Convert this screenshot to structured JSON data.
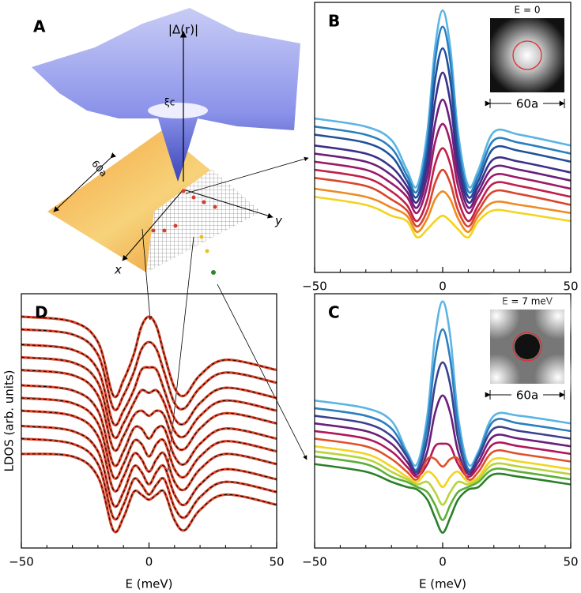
{
  "panel_a": {
    "label": "A",
    "surface_label": "|Δ(r)|",
    "core_label": "ξc",
    "size_label": "60a",
    "x_axis": "x",
    "y_axis": "y"
  },
  "chart_data": [
    {
      "type": "line",
      "label": "B",
      "x": [
        -50,
        -30,
        -20,
        -14,
        -10,
        -6,
        -3,
        0,
        3,
        6,
        10,
        14,
        20,
        30,
        50
      ],
      "series": [
        {
          "color": "#5ab4e5",
          "values": [
            57,
            54,
            49,
            38,
            32,
            52,
            83,
            97,
            83,
            52,
            32,
            38,
            52,
            51,
            47
          ]
        },
        {
          "color": "#2a7fc0",
          "values": [
            54,
            51,
            46,
            36,
            30,
            48,
            78,
            91,
            78,
            48,
            30,
            36,
            49,
            48,
            44
          ]
        },
        {
          "color": "#1f4f9a",
          "values": [
            51,
            48,
            43,
            34,
            28,
            44,
            71,
            83,
            71,
            44,
            28,
            34,
            46,
            45,
            41
          ]
        },
        {
          "color": "#3b2f8a",
          "values": [
            47,
            44,
            39,
            32,
            26,
            40,
            63,
            74,
            63,
            40,
            26,
            32,
            42,
            41,
            37
          ]
        },
        {
          "color": "#6a1f7a",
          "values": [
            44,
            41,
            36,
            30,
            24,
            36,
            55,
            64,
            55,
            36,
            24,
            30,
            39,
            38,
            34
          ]
        },
        {
          "color": "#9b1a6a",
          "values": [
            41,
            38,
            33,
            28,
            22,
            32,
            48,
            55,
            48,
            32,
            22,
            28,
            36,
            35,
            31
          ]
        },
        {
          "color": "#c0204a",
          "values": [
            38,
            35,
            30,
            25,
            19,
            27,
            40,
            46,
            40,
            27,
            19,
            25,
            33,
            32,
            28
          ]
        },
        {
          "color": "#d9452e",
          "values": [
            35,
            32,
            27,
            23,
            17,
            23,
            33,
            38,
            33,
            23,
            17,
            23,
            30,
            29,
            25
          ]
        },
        {
          "color": "#ee8a22",
          "values": [
            31,
            28,
            24,
            21,
            15,
            20,
            27,
            30,
            27,
            20,
            15,
            21,
            26,
            25,
            22
          ]
        },
        {
          "color": "#f2d41e",
          "values": [
            28,
            25,
            21,
            19,
            13,
            16,
            19,
            21,
            19,
            16,
            13,
            19,
            23,
            22,
            19
          ]
        }
      ],
      "xlim": [
        -50,
        50
      ],
      "ylim": [
        0,
        100
      ],
      "xticks": [
        {
          "value": -50,
          "label": "−50"
        },
        0,
        50
      ],
      "x_minor_ticks": [
        -40,
        -30,
        -20,
        -10,
        10,
        20,
        30,
        40
      ],
      "inset": {
        "title": "E = 0",
        "scale_label": "60a",
        "pattern": "single"
      }
    },
    {
      "type": "line",
      "label": "C",
      "x": [
        -50,
        -30,
        -20,
        -14,
        -10,
        -6,
        -3,
        0,
        3,
        6,
        10,
        14,
        20,
        30,
        50
      ],
      "series": [
        {
          "color": "#5ab4e5",
          "values": [
            58,
            55,
            50,
            38,
            33,
            52,
            83,
            97,
            83,
            52,
            33,
            38,
            52,
            52,
            49
          ]
        },
        {
          "color": "#2a7fc0",
          "values": [
            55,
            52,
            47,
            37,
            31,
            48,
            74,
            86,
            74,
            48,
            31,
            37,
            50,
            49,
            46
          ]
        },
        {
          "color": "#3b3f8f",
          "values": [
            52,
            49,
            44,
            36,
            30,
            43,
            64,
            73,
            64,
            43,
            30,
            36,
            47,
            46,
            43
          ]
        },
        {
          "color": "#6a1f7a",
          "values": [
            49,
            46,
            41,
            34,
            29,
            38,
            53,
            60,
            53,
            38,
            29,
            34,
            44,
            43,
            40
          ]
        },
        {
          "color": "#b0185a",
          "values": [
            46,
            43,
            38,
            32,
            28,
            33,
            40,
            41,
            40,
            33,
            28,
            32,
            41,
            40,
            37
          ]
        },
        {
          "color": "#e0502a",
          "values": [
            43,
            40,
            35,
            30,
            27,
            35,
            35,
            32,
            35,
            35,
            27,
            30,
            38,
            37,
            34
          ]
        },
        {
          "color": "#f2d41e",
          "values": [
            40,
            37,
            32,
            28,
            26,
            30,
            28,
            24,
            28,
            30,
            26,
            28,
            35,
            34,
            31
          ]
        },
        {
          "color": "#b8d43a",
          "values": [
            38,
            35,
            30,
            27,
            25,
            26,
            22,
            17,
            22,
            26,
            25,
            27,
            33,
            32,
            29
          ]
        },
        {
          "color": "#5cae3a",
          "values": [
            36,
            33,
            28,
            26,
            24,
            22,
            17,
            11,
            17,
            22,
            24,
            26,
            31,
            30,
            27
          ]
        },
        {
          "color": "#2a7f2a",
          "values": [
            33,
            30,
            26,
            24,
            23,
            19,
            12,
            6,
            12,
            19,
            23,
            24,
            29,
            28,
            25
          ]
        }
      ],
      "xlim": [
        -50,
        50
      ],
      "ylim": [
        0,
        100
      ],
      "xticks": [
        {
          "value": -50,
          "label": "−50"
        },
        0,
        50
      ],
      "x_minor_ticks": [
        -40,
        -30,
        -20,
        -10,
        10,
        20,
        30,
        40
      ],
      "x_label": "E (meV)",
      "inset": {
        "title": "E = 7 meV",
        "scale_label": "60a",
        "pattern": "four"
      }
    },
    {
      "type": "line",
      "label": "D",
      "x": [
        -50,
        -30,
        -20,
        -14,
        -10,
        -6,
        -3,
        0,
        3,
        6,
        10,
        14,
        20,
        30,
        50
      ],
      "series": [
        {
          "color": "#d9452b",
          "values": [
            91,
            89,
            81,
            60,
            66,
            76,
            87,
            91,
            87,
            76,
            63,
            60,
            68,
            74,
            70
          ]
        },
        {
          "color": "#d9452b",
          "values": [
            86,
            84,
            76,
            55,
            60,
            69,
            78,
            81,
            78,
            69,
            57,
            55,
            63,
            69,
            65
          ]
        },
        {
          "color": "#d9452b",
          "values": [
            80,
            78,
            70,
            49,
            54,
            62,
            70,
            71,
            70,
            62,
            51,
            49,
            57,
            63,
            59
          ]
        },
        {
          "color": "#d9452b",
          "values": [
            75,
            73,
            65,
            44,
            49,
            57,
            62,
            61,
            62,
            57,
            46,
            44,
            52,
            58,
            54
          ]
        },
        {
          "color": "#d9452b",
          "values": [
            70,
            68,
            60,
            39,
            44,
            52,
            54,
            52,
            54,
            52,
            41,
            39,
            47,
            53,
            49
          ]
        },
        {
          "color": "#d9452b",
          "values": [
            64,
            62,
            54,
            33,
            38,
            47,
            47,
            43,
            47,
            47,
            36,
            33,
            41,
            47,
            43
          ]
        },
        {
          "color": "#d9452b",
          "values": [
            59,
            57,
            49,
            28,
            33,
            42,
            41,
            36,
            41,
            42,
            31,
            28,
            36,
            42,
            38
          ]
        },
        {
          "color": "#d9452b",
          "values": [
            54,
            52,
            44,
            23,
            28,
            37,
            35,
            30,
            35,
            37,
            26,
            23,
            31,
            37,
            33
          ]
        },
        {
          "color": "#d9452b",
          "values": [
            48,
            46,
            38,
            17,
            22,
            32,
            30,
            25,
            30,
            32,
            21,
            17,
            25,
            31,
            27
          ]
        },
        {
          "color": "#d9452b",
          "values": [
            43,
            41,
            33,
            12,
            17,
            27,
            25,
            21,
            25,
            27,
            16,
            12,
            20,
            26,
            22
          ]
        },
        {
          "color": "#d9452b",
          "values": [
            37,
            36,
            28,
            7,
            12,
            22,
            21,
            19,
            21,
            22,
            11,
            7,
            15,
            21,
            17
          ]
        }
      ],
      "dashed_overlay": "#000000",
      "xlim": [
        -50,
        50
      ],
      "ylim": [
        0,
        100
      ],
      "xticks": [
        {
          "value": -50,
          "label": "−50"
        },
        0,
        50
      ],
      "x_minor_ticks": [
        -40,
        -30,
        -20,
        -10,
        10,
        20,
        30,
        40
      ],
      "x_label": "E (meV)",
      "y_label": "LDOS (arb. units)"
    }
  ]
}
